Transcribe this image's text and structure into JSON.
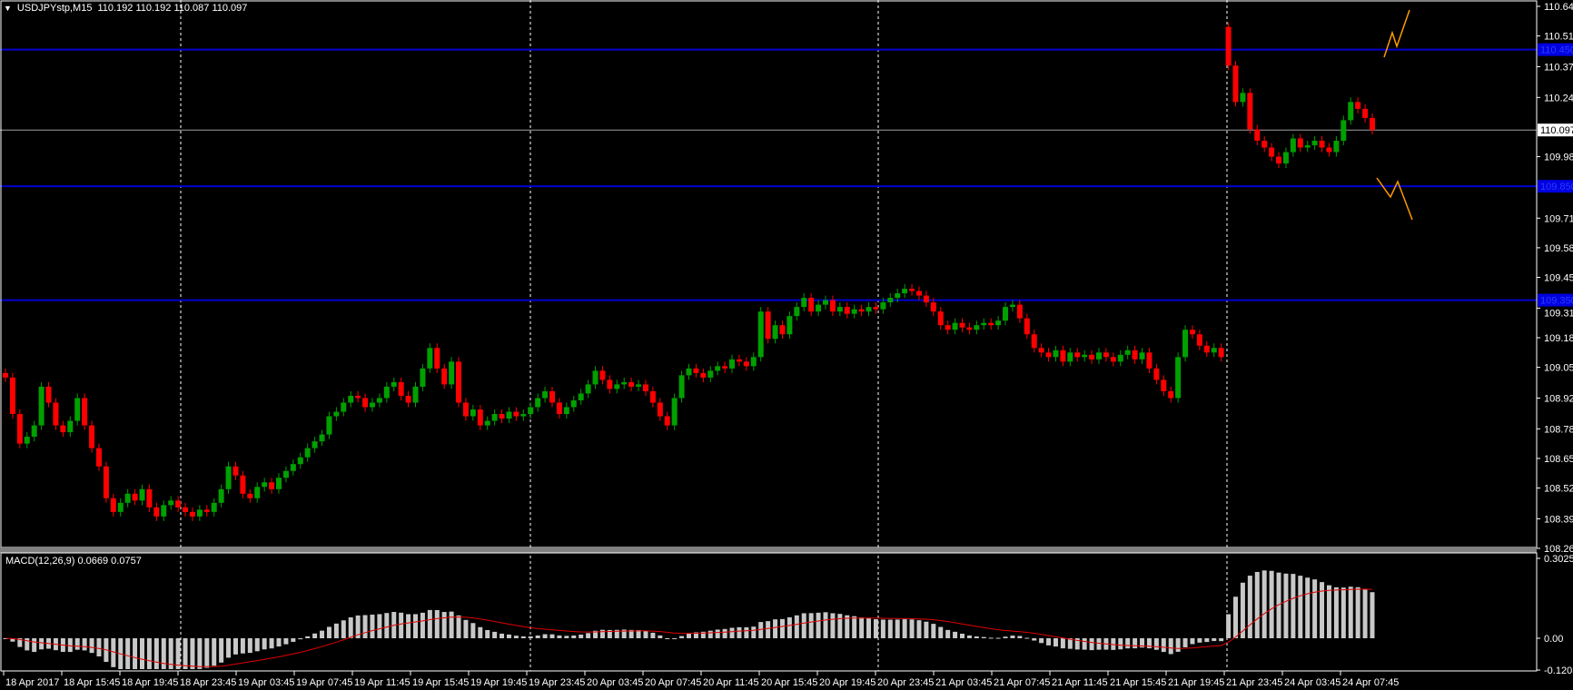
{
  "header": {
    "menu_icon": "triangle-down-icon",
    "symbol": "USDJPYstp,M15",
    "ohlc": "110.192 110.192 110.087 110.097"
  },
  "price_axis": {
    "ticks": [
      "110.640",
      "110.510",
      "110.375",
      "110.240",
      "109.980",
      "109.710",
      "109.580",
      "109.450",
      "109.315",
      "109.185",
      "109.055",
      "108.920",
      "108.785",
      "108.655",
      "108.525",
      "108.390",
      "108.260"
    ],
    "current_price": "110.097",
    "levels": [
      "110.450",
      "109.850",
      "109.350"
    ]
  },
  "macd": {
    "label": "MACD(12,26,9) 0.0669 0.0757",
    "axis_ticks": [
      "0.3025",
      "0.00",
      "-0.1203"
    ]
  },
  "time_axis": {
    "labels": [
      "18 Apr 2017",
      "18 Apr 15:45",
      "18 Apr 19:45",
      "18 Apr 23:45",
      "19 Apr 03:45",
      "19 Apr 07:45",
      "19 Apr 11:45",
      "19 Apr 15:45",
      "19 Apr 19:45",
      "19 Apr 23:45",
      "20 Apr 03:45",
      "20 Apr 07:45",
      "20 Apr 11:45",
      "20 Apr 15:45",
      "20 Apr 19:45",
      "20 Apr 23:45",
      "21 Apr 03:45",
      "21 Apr 07:45",
      "21 Apr 11:45",
      "21 Apr 15:45",
      "21 Apr 19:45",
      "21 Apr 23:45",
      "24 Apr 03:45",
      "24 Apr 07:45"
    ]
  },
  "chart_data": {
    "type": "candlestick",
    "symbol": "USDJPYstp",
    "timeframe": "M15",
    "ylim": [
      108.26,
      110.64
    ],
    "macd_ylim": [
      -0.1203,
      0.3025
    ],
    "macd_params": [
      12,
      26,
      9
    ],
    "current_price": 110.097,
    "horizontal_lines": [
      110.45,
      109.85,
      109.35
    ],
    "grid": false,
    "colors": {
      "bull": "#00a000",
      "bear": "#ff0000",
      "level_line": "#0000d0",
      "macd_hist": "#c8c8c8",
      "macd_signal": "#e00000",
      "drawing": "#ff9900",
      "current_line": "#a0a0a0"
    },
    "week1_closes": [
      109.01,
      108.85,
      108.72,
      108.75,
      108.8,
      108.97,
      108.9,
      108.8,
      108.77,
      108.82,
      108.92,
      108.8,
      108.7,
      108.62,
      108.48,
      108.42,
      108.46,
      108.5,
      108.47,
      108.52,
      108.44,
      108.4,
      108.45,
      108.47,
      108.44,
      108.42,
      108.4,
      108.43,
      108.42,
      108.46,
      108.52,
      108.62,
      108.58,
      108.5,
      108.48,
      108.53,
      108.55,
      108.52,
      108.57,
      108.6,
      108.63,
      108.66,
      108.7,
      108.73,
      108.76,
      108.84,
      108.86,
      108.9,
      108.93,
      108.92,
      108.88,
      108.9,
      108.92,
      108.97,
      108.99,
      108.93,
      108.9,
      108.97,
      109.05,
      109.14,
      109.05,
      108.98,
      109.08,
      108.9,
      108.84,
      108.87,
      108.8,
      108.82,
      108.85,
      108.83,
      108.86,
      108.84,
      108.85,
      108.88,
      108.92,
      108.95,
      108.9,
      108.85,
      108.88,
      108.91,
      108.94,
      108.98,
      109.04,
      109.0,
      108.96,
      108.98,
      108.99,
      108.97,
      108.98,
      108.95,
      108.9,
      108.84,
      108.8,
      108.92,
      109.02,
      109.05,
      109.03,
      109.01,
      109.04,
      109.06,
      109.05,
      109.09,
      109.08,
      109.06,
      109.1,
      109.3,
      109.18,
      109.24,
      109.2,
      109.28,
      109.32,
      109.36,
      109.3,
      109.33,
      109.35,
      109.3,
      109.32,
      109.29,
      109.31,
      109.3,
      109.32,
      109.31,
      109.34,
      109.36,
      109.38,
      109.4,
      109.39,
      109.37,
      109.34,
      109.3,
      109.24,
      109.22,
      109.25,
      109.23,
      109.22,
      109.24,
      109.25,
      109.24,
      109.26,
      109.32,
      109.33,
      109.27,
      109.2,
      109.14,
      109.12,
      109.1,
      109.13,
      109.08,
      109.12,
      109.1,
      109.11,
      109.09,
      109.12,
      109.1,
      109.08,
      109.11,
      109.13,
      109.09,
      109.12,
      109.05,
      109.0,
      108.95,
      108.92,
      109.1,
      109.22,
      109.2,
      109.15,
      109.12,
      109.14,
      109.1
    ],
    "week2_open": 110.55,
    "week2_closes": [
      110.38,
      110.22,
      110.26,
      110.1,
      110.05,
      110.02,
      109.98,
      109.95,
      110.0,
      110.06,
      110.02,
      110.03,
      110.05,
      110.02,
      110.0,
      110.05,
      110.14,
      110.22,
      110.19,
      110.15,
      110.097
    ]
  }
}
